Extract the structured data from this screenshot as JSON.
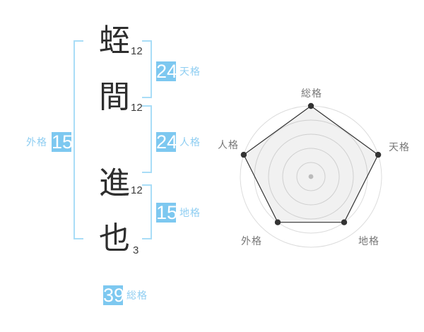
{
  "name_display": {
    "characters": [
      {
        "char": "蛭",
        "strokes": "12"
      },
      {
        "char": "間",
        "strokes": "12"
      },
      {
        "char": "進",
        "strokes": "12"
      },
      {
        "char": "也",
        "strokes": "3"
      }
    ]
  },
  "scores": {
    "tenkaku": {
      "value": "24",
      "label": "天格"
    },
    "jinkaku": {
      "value": "24",
      "label": "人格"
    },
    "chikaku": {
      "value": "15",
      "label": "地格"
    },
    "gaikaku": {
      "value": "15",
      "label": "外格"
    },
    "soukaku": {
      "value": "39",
      "label": "総格"
    }
  },
  "colors": {
    "badge_blue": "#7dc8f0",
    "bracket_blue": "#a9ddf7",
    "label_blue": "#8fcef2",
    "kanji_dark": "#2e2e2e",
    "stroke_number_dark": "#3c3c3c",
    "chart_grid": "#dcdcdc",
    "chart_label": "#777777",
    "chart_line": "#333333",
    "chart_fill": "rgba(0,0,0,0.055)",
    "chart_center_dot": "#c6c6c6"
  },
  "chart_data": {
    "type": "radar",
    "categories": [
      "総格",
      "天格",
      "地格",
      "外格",
      "人格"
    ],
    "values": [
      5,
      5,
      4,
      4,
      5
    ],
    "max": 5,
    "rings": 5,
    "grid_shape": "circular",
    "legend": "none",
    "notes": "vertices at 100% radius for 総格/天格/人格, 80% radius for 地格/外格"
  }
}
